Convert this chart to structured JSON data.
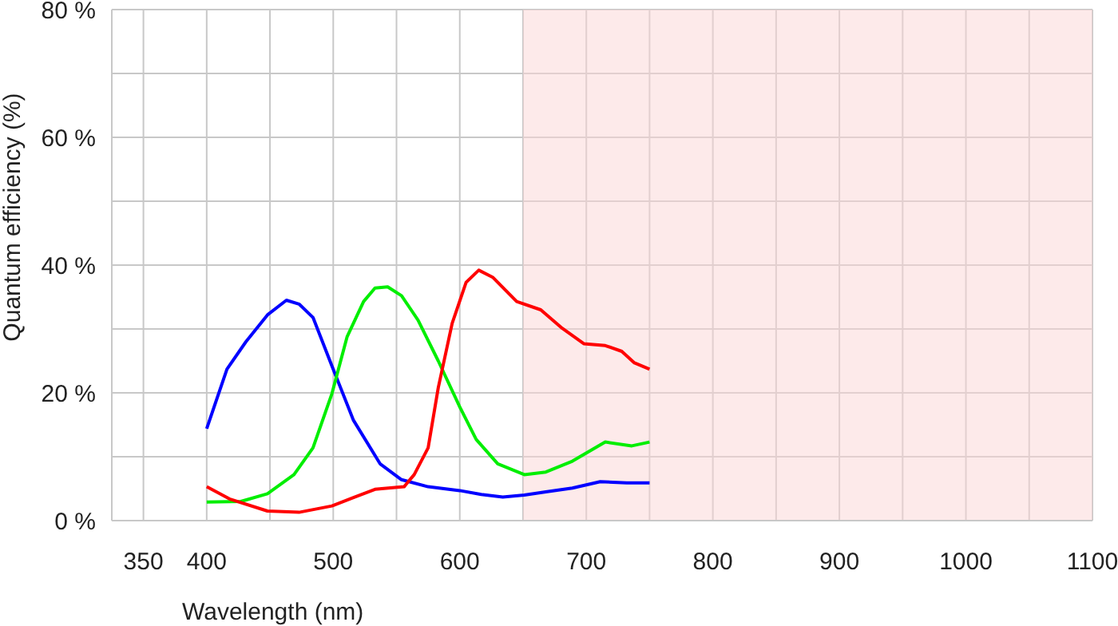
{
  "chart_data": {
    "type": "line",
    "xlabel": "Wavelength (nm)",
    "ylabel": "Quantum efficiency (%)",
    "xlim": [
      325,
      1100
    ],
    "xticks": [
      350,
      400,
      {
        "value": 450,
        "label": null
      },
      500,
      {
        "value": 550,
        "label": null
      },
      600,
      {
        "value": 650,
        "label": null
      },
      700,
      {
        "value": 750,
        "label": null
      },
      800,
      {
        "value": 850,
        "label": null
      },
      900,
      {
        "value": 950,
        "label": null
      },
      1000,
      {
        "value": 1050,
        "label": null
      },
      1100
    ],
    "ylim": [
      0,
      80
    ],
    "yticks": [
      {
        "value": 0,
        "label": "0 %"
      },
      {
        "value": 10,
        "label": null
      },
      {
        "value": 20,
        "label": "20 %"
      },
      {
        "value": 30,
        "label": null
      },
      {
        "value": 40,
        "label": "40 %"
      },
      {
        "value": 50,
        "label": null
      },
      {
        "value": 60,
        "label": "60 %"
      },
      {
        "value": 70,
        "label": null
      },
      {
        "value": 80,
        "label": "80 %"
      }
    ],
    "grid": true,
    "legend": false,
    "marker": "none",
    "line_style": "solid",
    "bands": [
      {
        "axis": "x",
        "from": 650,
        "to": 1100,
        "color": "#fdeaea"
      }
    ],
    "series": [
      {
        "color": "#0000ff",
        "x": [
          400,
          416,
          431,
          448,
          463,
          473,
          484,
          499,
          516,
          537,
          554,
          575,
          600,
          617,
          634,
          651,
          668,
          689,
          711,
          732,
          750
        ],
        "values": [
          14.4,
          23.7,
          28,
          32.2,
          34.5,
          33.9,
          31.8,
          24.2,
          15.7,
          8.9,
          6.4,
          5.3,
          4.7,
          4.1,
          3.7,
          4,
          4.5,
          5.1,
          6.1,
          5.9,
          5.9
        ]
      },
      {
        "color": "#00ee00",
        "x": [
          400,
          427,
          448,
          469,
          484,
          499,
          511,
          524,
          533,
          543,
          554,
          567,
          583,
          600,
          613,
          630,
          651,
          668,
          689,
          715,
          736,
          750
        ],
        "values": [
          2.9,
          3,
          4.2,
          7.2,
          11.4,
          19.9,
          28.8,
          34.3,
          36.4,
          36.6,
          35.2,
          31.4,
          25,
          17.8,
          12.7,
          8.9,
          7.2,
          7.6,
          9.3,
          12.3,
          11.7,
          12.3
        ]
      },
      {
        "color": "#ff0000",
        "x": [
          400,
          418,
          448,
          473,
          499,
          516,
          533,
          556,
          564,
          575,
          583,
          594,
          605,
          615,
          626,
          645,
          664,
          681,
          698,
          715,
          728,
          738,
          750
        ],
        "values": [
          5.3,
          3.4,
          1.5,
          1.3,
          2.3,
          3.6,
          4.9,
          5.3,
          7.2,
          11.4,
          20.8,
          30.9,
          37.3,
          39.2,
          38.1,
          34.3,
          33,
          30.1,
          27.7,
          27.4,
          26.5,
          24.7,
          23.7
        ]
      }
    ]
  }
}
